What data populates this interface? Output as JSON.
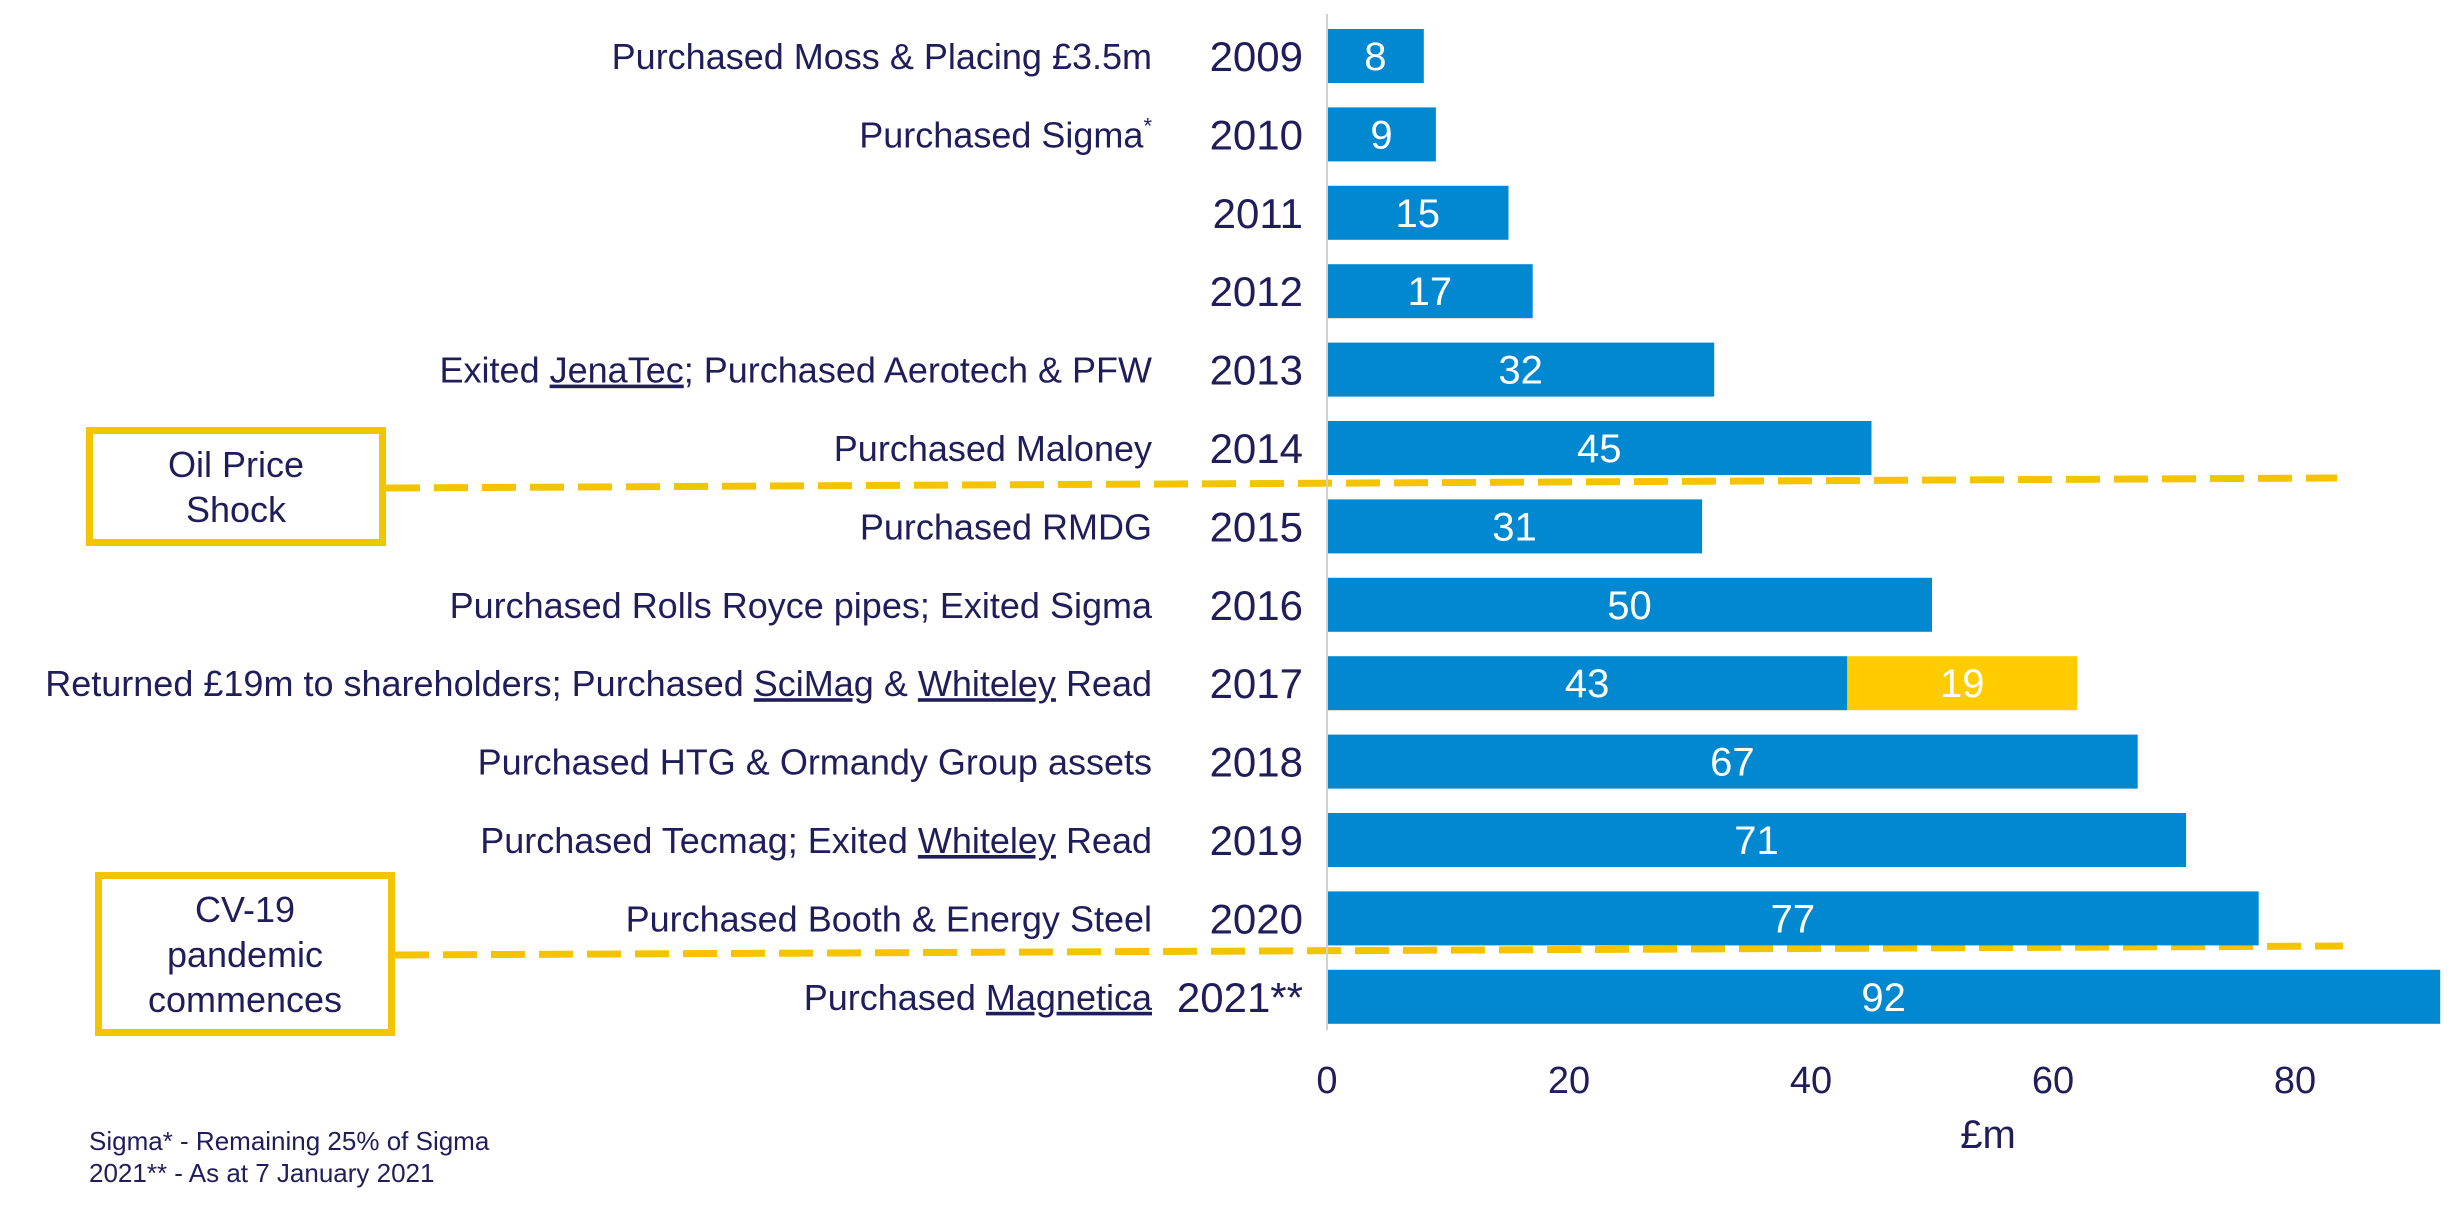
{
  "chart_data": {
    "type": "bar",
    "orientation": "horizontal",
    "stacked": true,
    "categories": [
      "2009",
      "2010",
      "2011",
      "2012",
      "2013",
      "2014",
      "2015",
      "2016",
      "2017",
      "2018",
      "2019",
      "2020",
      "2021**"
    ],
    "events": [
      "Purchased Moss & Placing £3.5m",
      "Purchased Sigma*",
      "",
      "",
      "Exited JenaTec; Purchased Aerotech & PFW",
      "Purchased Maloney",
      "Purchased RMDG",
      "Purchased Rolls Royce pipes; Exited Sigma",
      "Returned £19m to shareholders; Purchased SciMag & Whiteley Read",
      "Purchased HTG & Ormandy Group assets",
      "Purchased Tecmag; Exited Whiteley Read",
      "Purchased Booth & Energy Steel",
      "Purchased Magnetica"
    ],
    "series": [
      {
        "values": [
          8,
          9,
          15,
          17,
          32,
          45,
          31,
          50,
          43,
          67,
          71,
          77,
          92
        ],
        "color": "#0288d1"
      },
      {
        "values": [
          0,
          0,
          0,
          0,
          0,
          0,
          0,
          0,
          19,
          0,
          0,
          0,
          0
        ],
        "color": "#ffcc00"
      }
    ],
    "xlim": [
      0,
      92
    ],
    "xticks": [
      "0",
      "20",
      "40",
      "60",
      "80"
    ],
    "xlabel": "£m",
    "ylabel": "",
    "title": "",
    "grid": false,
    "annotations": [
      {
        "text": "Oil Price\nShock",
        "between": [
          "2014",
          "2015"
        ]
      },
      {
        "text": "CV-19\npandemic\ncommences",
        "between": [
          "2020",
          "2021**"
        ]
      }
    ],
    "annotation_color": "#f5c400"
  },
  "footnotes": [
    "Sigma* - Remaining 25% of Sigma",
    "2021** - As at 7 January 2021"
  ]
}
